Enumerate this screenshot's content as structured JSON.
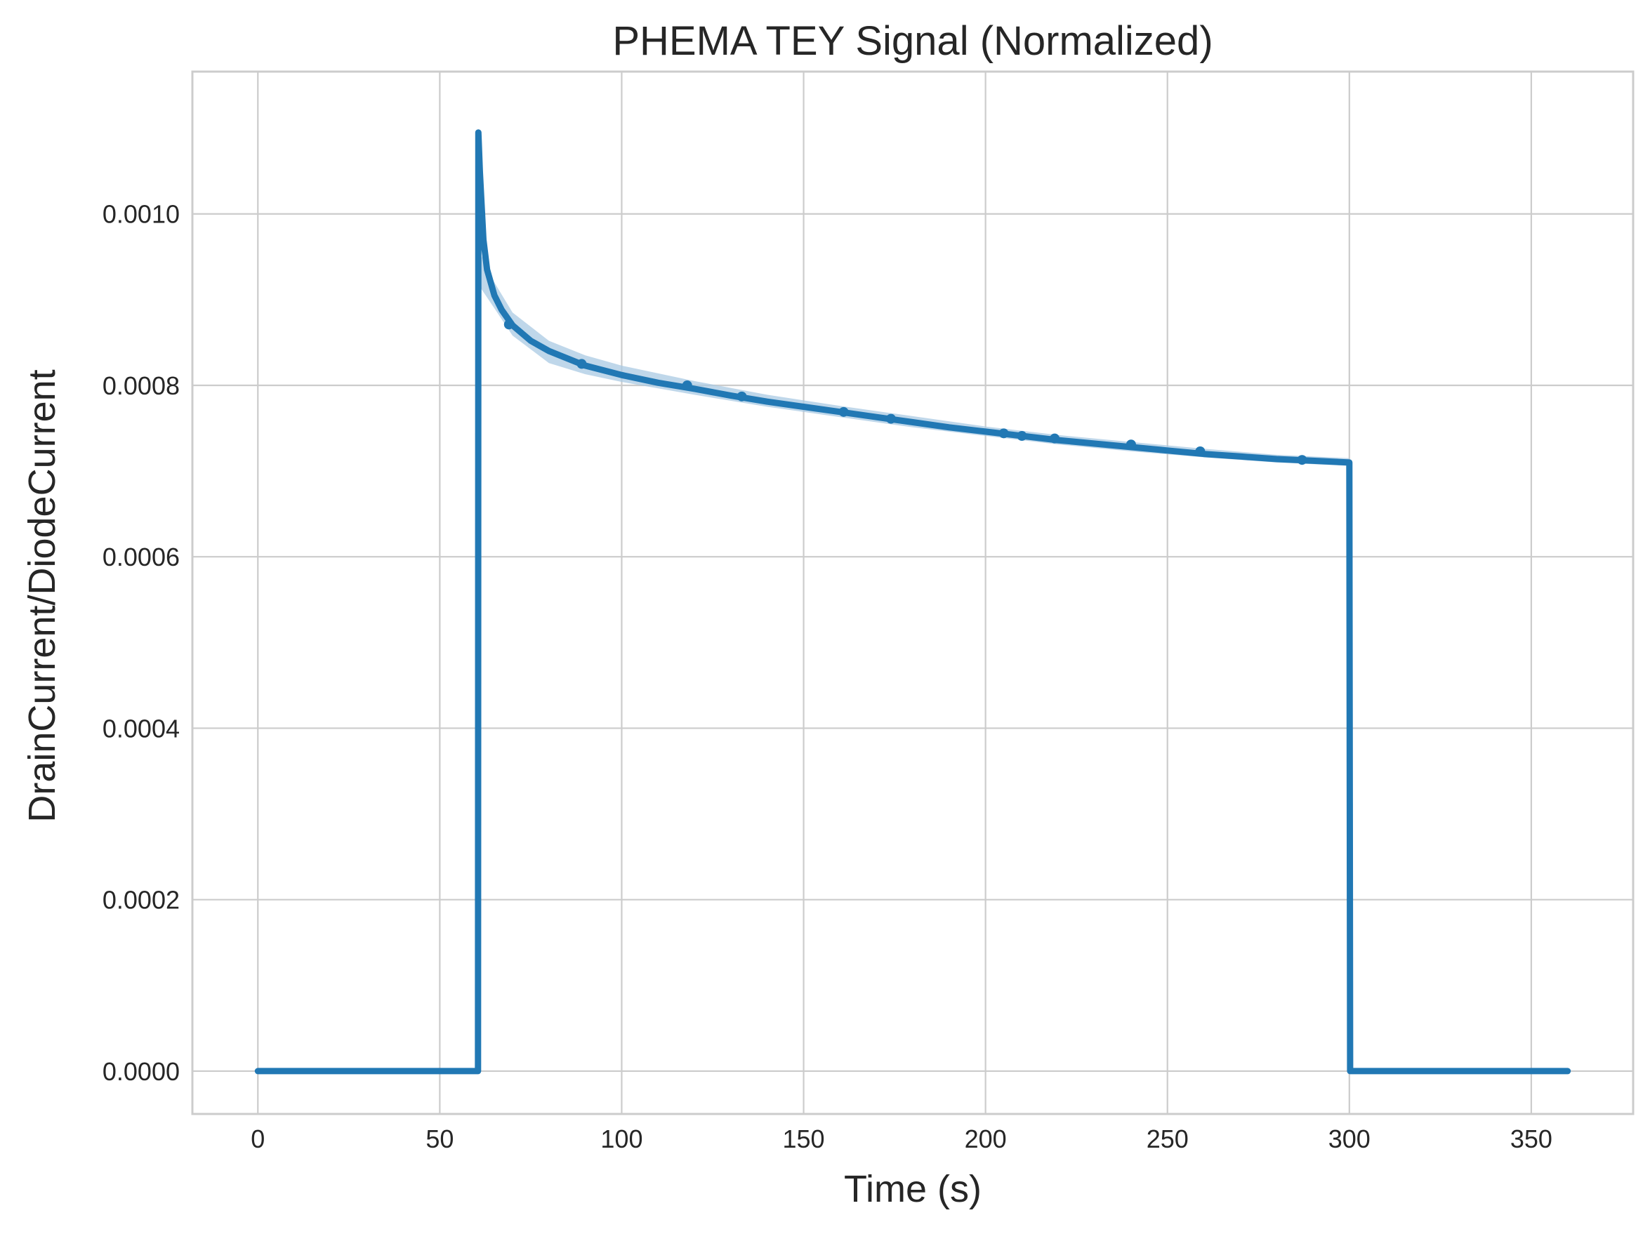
{
  "chart_data": {
    "type": "line",
    "title": "PHEMA TEY Signal (Normalized)",
    "xlabel": "Time (s)",
    "ylabel": "DrainCurrent/DiodeCurrent",
    "xlim": [
      -18,
      378
    ],
    "ylim": [
      -5e-05,
      0.001166
    ],
    "xticks": [
      0,
      50,
      100,
      150,
      200,
      250,
      300,
      350
    ],
    "yticks": [
      0.0,
      0.0002,
      0.0004,
      0.0006,
      0.0008,
      0.001
    ],
    "xtick_labels": [
      "0",
      "50",
      "100",
      "150",
      "200",
      "250",
      "300",
      "350"
    ],
    "ytick_labels": [
      "0.0000",
      "0.0002",
      "0.0004",
      "0.0006",
      "0.0008",
      "0.0010"
    ],
    "grid": true,
    "legend": "none",
    "colors": {
      "line": "#2178b4",
      "band": "#a9c9e3",
      "grid": "#cccccc",
      "spine": "#cccccc"
    },
    "series": [
      {
        "x": [
          0,
          60.0,
          60.5,
          60.6,
          61,
          62,
          63,
          65,
          67,
          70,
          75,
          80,
          90,
          100,
          110,
          120,
          130,
          140,
          150,
          160,
          170,
          180,
          190,
          200,
          210,
          220,
          230,
          240,
          250,
          260,
          270,
          280,
          290,
          300,
          300.2,
          360
        ],
        "y": [
          0,
          0,
          0,
          0.001095,
          0.00105,
          0.00097,
          0.000935,
          0.000905,
          0.000888,
          0.00087,
          0.000852,
          0.00084,
          0.000823,
          0.000812,
          0.000803,
          0.000796,
          0.000788,
          0.000781,
          0.000775,
          0.000769,
          0.000763,
          0.000757,
          0.000751,
          0.000746,
          0.000741,
          0.000736,
          0.000732,
          0.000728,
          0.000724,
          0.00072,
          0.000717,
          0.000714,
          0.000712,
          0.00071,
          0,
          0
        ]
      }
    ],
    "markers": {
      "x": [
        69,
        89,
        118,
        133,
        161,
        174,
        205,
        210,
        219,
        240,
        259,
        287
      ],
      "y": [
        0.000871,
        0.000825,
        0.0008,
        0.000787,
        0.000769,
        0.000761,
        0.000744,
        0.000741,
        0.000738,
        0.000731,
        0.000723,
        0.000713
      ]
    },
    "band": {
      "x": [
        61,
        65,
        70,
        80,
        90,
        100,
        120,
        140,
        160,
        180,
        200,
        220,
        240,
        260,
        280,
        300
      ],
      "lower": [
        0.000915,
        0.00089,
        0.000858,
        0.000826,
        0.000813,
        0.000804,
        0.000789,
        0.000775,
        0.000763,
        0.000751,
        0.000741,
        0.000731,
        0.000723,
        0.000716,
        0.00071,
        0.000706
      ],
      "upper": [
        0.000955,
        0.00092,
        0.000885,
        0.000852,
        0.000835,
        0.000823,
        0.000805,
        0.000789,
        0.000776,
        0.000764,
        0.000752,
        0.000742,
        0.000734,
        0.000726,
        0.000719,
        0.000715
      ]
    }
  }
}
